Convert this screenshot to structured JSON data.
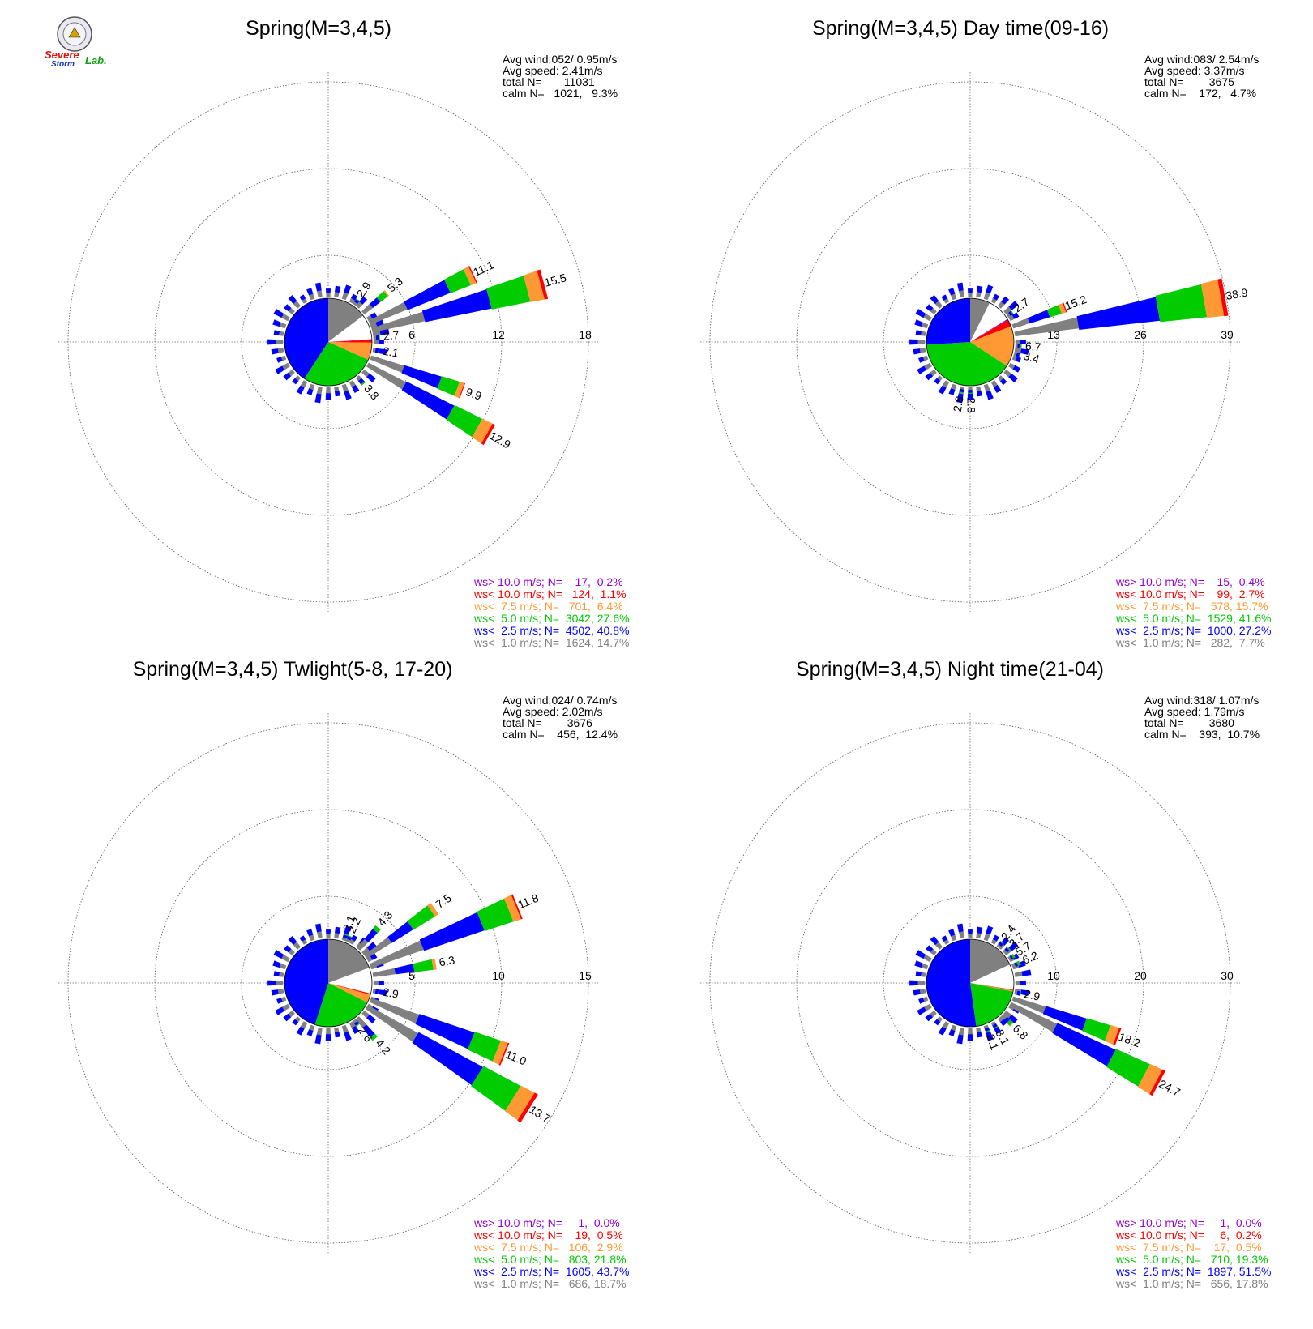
{
  "logo": {
    "line1": "Severe",
    "line2": "Storm",
    "line3": "Lab."
  },
  "colors": {
    "gt10": "#9400d3",
    "lt10": "#ff0000",
    "lt7_5": "#ff9933",
    "lt5": "#00cc00",
    "lt2_5": "#0000ff",
    "lt1": "#808080"
  },
  "chart_data": [
    {
      "type": "windrose",
      "title": "Spring(M=3,4,5)",
      "stats": {
        "avg_wind": "Avg wind:052/ 0.95m/s",
        "avg_speed": "Avg speed: 2.41m/s",
        "total": "total N=       11031",
        "calm": "calm N=   1021,   9.3%"
      },
      "rings": [
        6,
        12,
        18
      ],
      "ring_labels": [
        "6",
        "12",
        "18"
      ],
      "pie": [
        {
          "cat": "lt1",
          "pct": 14.7
        },
        {
          "cat": "gt10",
          "pct": 0.2
        },
        {
          "cat": "lt10",
          "pct": 1.1
        },
        {
          "cat": "lt7_5",
          "pct": 6.4
        },
        {
          "cat": "lt5",
          "pct": 27.6
        },
        {
          "cat": "lt2_5",
          "pct": 40.8
        }
      ],
      "spokes": [
        {
          "dir": 120,
          "value": 12.9,
          "label": "12.9"
        },
        {
          "dir": 110,
          "value": 9.9,
          "label": "9.9"
        },
        {
          "dir": 140,
          "value": 3.8,
          "label": "3.8"
        },
        {
          "dir": 100,
          "value": 2.1,
          "label": "2.1"
        },
        {
          "dir": 35,
          "value": 2.9,
          "label": "2.9"
        },
        {
          "dir": 50,
          "value": 5.3,
          "label": "5.3"
        },
        {
          "dir": 65,
          "value": 11.1,
          "label": "11.1"
        },
        {
          "dir": 75,
          "value": 15.5,
          "label": "15.5"
        },
        {
          "dir": 85,
          "value": 2.7,
          "label": "2.7"
        }
      ],
      "legend": [
        {
          "text": "ws> 10.0 m/s; N=    17,  0.2%",
          "cat": "gt10"
        },
        {
          "text": "ws< 10.0 m/s; N=   124,  1.1%",
          "cat": "lt10"
        },
        {
          "text": "ws<  7.5 m/s; N=   701,  6.4%",
          "cat": "lt7_5"
        },
        {
          "text": "ws<  5.0 m/s; N=  3042, 27.6%",
          "cat": "lt5"
        },
        {
          "text": "ws<  2.5 m/s; N=  4502, 40.8%",
          "cat": "lt2_5"
        },
        {
          "text": "ws<  1.0 m/s; N=  1624, 14.7%",
          "cat": "lt1"
        }
      ]
    },
    {
      "type": "windrose",
      "title": "Spring(M=3,4,5) Day time(09-16)",
      "stats": {
        "avg_wind": "Avg wind:083/ 2.54m/s",
        "avg_speed": "Avg speed: 3.37m/s",
        "total": "total N=        3675",
        "calm": "calm N=    172,   4.7%"
      },
      "rings": [
        13,
        26,
        39
      ],
      "ring_labels": [
        "13",
        "26",
        "39"
      ],
      "pie": [
        {
          "cat": "lt1",
          "pct": 7.7
        },
        {
          "cat": "gt10",
          "pct": 0.4
        },
        {
          "cat": "lt10",
          "pct": 2.7
        },
        {
          "cat": "lt7_5",
          "pct": 15.7
        },
        {
          "cat": "lt5",
          "pct": 41.6
        },
        {
          "cat": "lt2_5",
          "pct": 27.2
        }
      ],
      "spokes": [
        {
          "dir": 55,
          "value": 2.7,
          "label": "2.7"
        },
        {
          "dir": 70,
          "value": 15.2,
          "label": "15.2"
        },
        {
          "dir": 80,
          "value": 38.9,
          "label": "38.9"
        },
        {
          "dir": 95,
          "value": 6.7,
          "label": "6.7"
        },
        {
          "dir": 105,
          "value": 3.4,
          "label": "3.4"
        },
        {
          "dir": 180,
          "value": 2.8,
          "label": "2.8"
        },
        {
          "dir": 190,
          "value": 2.8,
          "label": "2.8"
        }
      ],
      "legend": [
        {
          "text": "ws> 10.0 m/s; N=    15,  0.4%",
          "cat": "gt10"
        },
        {
          "text": "ws< 10.0 m/s; N=    99,  2.7%",
          "cat": "lt10"
        },
        {
          "text": "ws<  7.5 m/s; N=   578, 15.7%",
          "cat": "lt7_5"
        },
        {
          "text": "ws<  5.0 m/s; N=  1529, 41.6%",
          "cat": "lt5"
        },
        {
          "text": "ws<  2.5 m/s; N=  1000, 27.2%",
          "cat": "lt2_5"
        },
        {
          "text": "ws<  1.0 m/s; N=   282,  7.7%",
          "cat": "lt1"
        }
      ]
    },
    {
      "type": "windrose",
      "title": "Spring(M=3,4,5) Twlight(5-8, 17-20)",
      "stats": {
        "avg_wind": "Avg wind:024/ 0.74m/s",
        "avg_speed": "Avg speed: 2.02m/s",
        "total": "total N=        3676",
        "calm": "calm N=    456,  12.4%"
      },
      "rings": [
        5,
        10,
        15
      ],
      "ring_labels": [
        "5",
        "10",
        "15"
      ],
      "pie": [
        {
          "cat": "lt1",
          "pct": 18.7
        },
        {
          "cat": "gt10",
          "pct": 0.0
        },
        {
          "cat": "lt10",
          "pct": 0.5
        },
        {
          "cat": "lt7_5",
          "pct": 2.9
        },
        {
          "cat": "lt5",
          "pct": 21.8
        },
        {
          "cat": "lt2_5",
          "pct": 43.7
        }
      ],
      "spokes": [
        {
          "dir": 122,
          "value": 13.7,
          "label": "13.7"
        },
        {
          "dir": 112,
          "value": 11.0,
          "label": "11.0"
        },
        {
          "dir": 140,
          "value": 4.2,
          "label": "4.2"
        },
        {
          "dir": 145,
          "value": 2.6,
          "label": "2.6"
        },
        {
          "dir": 100,
          "value": 2.9,
          "label": "2.9"
        },
        {
          "dir": 20,
          "value": 2.1,
          "label": "2.1"
        },
        {
          "dir": 25,
          "value": 2.2,
          "label": "2.2"
        },
        {
          "dir": 42,
          "value": 4.3,
          "label": "4.3"
        },
        {
          "dir": 55,
          "value": 7.5,
          "label": "7.5"
        },
        {
          "dir": 68,
          "value": 11.8,
          "label": "11.8"
        },
        {
          "dir": 80,
          "value": 6.3,
          "label": "6.3"
        }
      ],
      "legend": [
        {
          "text": "ws> 10.0 m/s; N=     1,  0.0%",
          "cat": "gt10"
        },
        {
          "text": "ws< 10.0 m/s; N=    19,  0.5%",
          "cat": "lt10"
        },
        {
          "text": "ws<  7.5 m/s; N=   106,  2.9%",
          "cat": "lt7_5"
        },
        {
          "text": "ws<  5.0 m/s; N=   803, 21.8%",
          "cat": "lt5"
        },
        {
          "text": "ws<  2.5 m/s; N=  1605, 43.7%",
          "cat": "lt2_5"
        },
        {
          "text": "ws<  1.0 m/s; N=   686, 18.7%",
          "cat": "lt1"
        }
      ]
    },
    {
      "type": "windrose",
      "title": "Spring(M=3,4,5) Night time(21-04)",
      "stats": {
        "avg_wind": "Avg wind:318/ 1.07m/s",
        "avg_speed": "Avg speed: 1.79m/s",
        "total": "total N=        3680",
        "calm": "calm N=    393,  10.7%"
      },
      "rings": [
        10,
        20,
        30
      ],
      "ring_labels": [
        "10",
        "20",
        "30"
      ],
      "pie": [
        {
          "cat": "lt1",
          "pct": 17.8
        },
        {
          "cat": "gt10",
          "pct": 0.0
        },
        {
          "cat": "lt10",
          "pct": 0.2
        },
        {
          "cat": "lt7_5",
          "pct": 0.5
        },
        {
          "cat": "lt5",
          "pct": 19.3
        },
        {
          "cat": "lt2_5",
          "pct": 51.5
        }
      ],
      "spokes": [
        {
          "dir": 118,
          "value": 24.7,
          "label": "24.7"
        },
        {
          "dir": 110,
          "value": 18.2,
          "label": "18.2"
        },
        {
          "dir": 135,
          "value": 6.8,
          "label": "6.8"
        },
        {
          "dir": 150,
          "value": 3.1,
          "label": "3.1"
        },
        {
          "dir": 160,
          "value": 2.1,
          "label": "2.1"
        },
        {
          "dir": 102,
          "value": 2.9,
          "label": "2.9"
        },
        {
          "dir": 38,
          "value": 2.4,
          "label": "2.4"
        },
        {
          "dir": 48,
          "value": 3.7,
          "label": "3.7"
        },
        {
          "dir": 58,
          "value": 5.7,
          "label": "5.7"
        },
        {
          "dir": 68,
          "value": 6.2,
          "label": "6.2"
        }
      ],
      "legend": [
        {
          "text": "ws> 10.0 m/s; N=     1,  0.0%",
          "cat": "gt10"
        },
        {
          "text": "ws< 10.0 m/s; N=     6,  0.2%",
          "cat": "lt10"
        },
        {
          "text": "ws<  7.5 m/s; N=    17,  0.5%",
          "cat": "lt7_5"
        },
        {
          "text": "ws<  5.0 m/s; N=   710, 19.3%",
          "cat": "lt5"
        },
        {
          "text": "ws<  2.5 m/s; N=  1897, 51.5%",
          "cat": "lt2_5"
        },
        {
          "text": "ws<  1.0 m/s; N=   656, 17.8%",
          "cat": "lt1"
        }
      ]
    }
  ]
}
